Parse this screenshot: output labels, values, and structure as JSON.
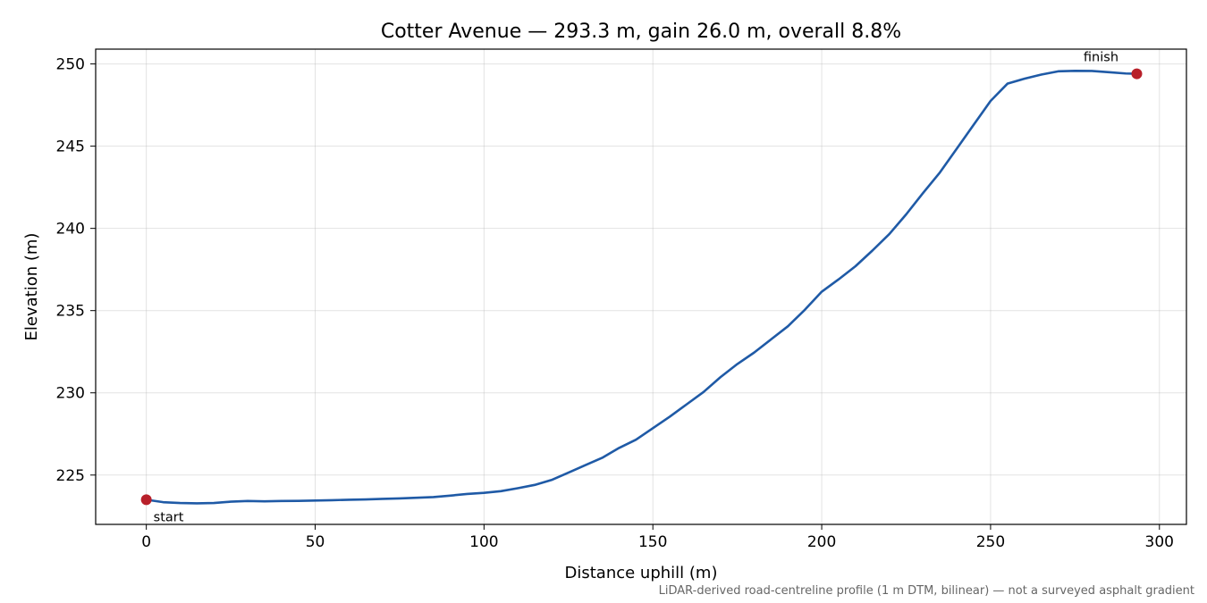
{
  "chart_data": {
    "type": "line",
    "title": "Cotter Avenue — 293.3 m, gain 26.0 m, overall 8.8%",
    "xlabel": "Distance uphill (m)",
    "ylabel": "Elevation (m)",
    "xlim": [
      -15,
      308
    ],
    "ylim": [
      222,
      250.9
    ],
    "xticks": [
      0,
      50,
      100,
      150,
      200,
      250,
      300
    ],
    "yticks": [
      225,
      230,
      235,
      240,
      245,
      250
    ],
    "grid": true,
    "line_color": "#1f5aa6",
    "marker_color": "#b8202a",
    "series": [
      {
        "x": [
          0,
          5,
          10,
          15,
          20,
          25,
          30,
          35,
          40,
          45,
          50,
          55,
          60,
          65,
          70,
          75,
          80,
          85,
          90,
          95,
          100,
          105,
          110,
          115,
          120,
          125,
          130,
          135,
          140,
          145,
          150,
          155,
          160,
          165,
          170,
          175,
          180,
          185,
          190,
          195,
          200,
          205,
          210,
          215,
          220,
          225,
          230,
          235,
          240,
          245,
          250,
          255,
          260,
          265,
          270,
          275,
          280,
          285,
          290,
          293.3
        ],
        "y": [
          223.5,
          223.35,
          223.3,
          223.28,
          223.3,
          223.38,
          223.42,
          223.4,
          223.42,
          223.43,
          223.45,
          223.47,
          223.5,
          223.52,
          223.55,
          223.58,
          223.62,
          223.66,
          223.75,
          223.85,
          223.92,
          224.02,
          224.2,
          224.4,
          224.7,
          225.15,
          225.6,
          226.05,
          226.65,
          227.15,
          227.85,
          228.55,
          229.3,
          230.05,
          230.95,
          231.75,
          232.45,
          233.25,
          234.05,
          235.05,
          236.15,
          236.9,
          237.7,
          238.65,
          239.65,
          240.85,
          242.15,
          243.4,
          244.85,
          246.3,
          247.75,
          248.8,
          249.1,
          249.35,
          249.55,
          249.58,
          249.57,
          249.5,
          249.42,
          249.4
        ]
      }
    ],
    "annotations": {
      "start_label": "start",
      "finish_label": "finish",
      "start_point": [
        0,
        223.5
      ],
      "finish_point": [
        293.3,
        249.4
      ]
    },
    "footnote": "LiDAR-derived road-centreline profile (1 m DTM, bilinear) — not a surveyed asphalt gradient"
  }
}
